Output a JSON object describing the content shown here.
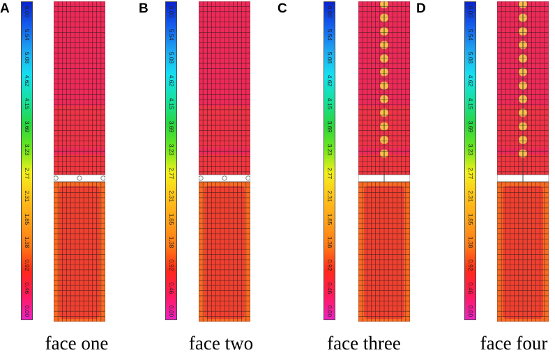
{
  "colorbar": {
    "ticks": [
      "6.00",
      "5.54",
      "5.08",
      "4.62",
      "4.15",
      "3.69",
      "3.23",
      "2.77",
      "2.31",
      "1.85",
      "1.38",
      "0.92",
      "0.46",
      "0.00"
    ],
    "colors": [
      "#0a22cc",
      "#1560ee",
      "#1ea8f0",
      "#16e0f0",
      "#16e0a0",
      "#28d640",
      "#6ee61e",
      "#f2f01c",
      "#ffc21a",
      "#ffa018",
      "#ff7a16",
      "#ff2a1a",
      "#ff1a5a",
      "#ee22c4"
    ]
  },
  "panels": [
    {
      "letter": "A",
      "caption": "face one",
      "stub": "none"
    },
    {
      "letter": "B",
      "caption": "face two",
      "stub": "none"
    },
    {
      "letter": "C",
      "caption": "face three",
      "stub": "short"
    },
    {
      "letter": "D",
      "caption": "face four",
      "stub": "tall"
    }
  ],
  "contour_colors": {
    "upper": "#ee2a58",
    "upper_patch": "#f23a3a",
    "lower": "#f04030",
    "lower_edge": "#fa6a22",
    "hot_spot": "#ffd84a",
    "grid": "#1a1a1a",
    "gap": "#ffffff"
  }
}
